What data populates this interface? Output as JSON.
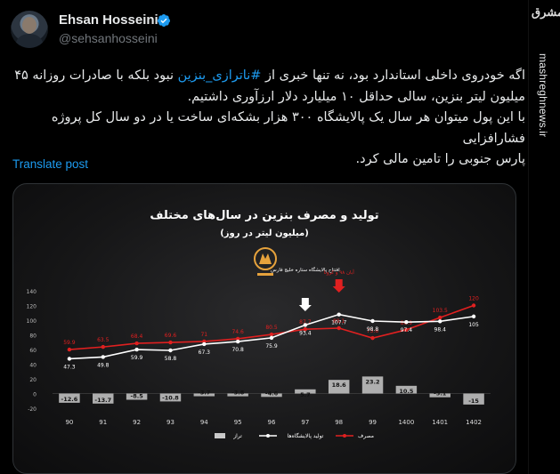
{
  "author": {
    "name": "Ehsan Hosseini",
    "handle": "@sehsanhosseini",
    "verified": true
  },
  "tweet": {
    "line1": "اگه خودروی داخلی استاندارد بود، نه تنها خبری از ",
    "hashtag": "#ناترازی_بنزین",
    "line1_end": " نبود بلکه با صادرات روزانه ۴۵",
    "line2": "میلیون لیتر بنزین، سالی حداقل ۱۰ میلیارد دلار ارزآوری داشتیم.",
    "line3": "با این پول میتوان هر سال یک پالایشگاه ۳۰۰ هزار بشکه‌ای ساخت یا در دو سال کل پروژه فشارافزایی",
    "line4": "پارس جنوبی را تامین مالی کرد."
  },
  "translate_label": "Translate post",
  "side": {
    "logo_text": "مشرق",
    "site": "mashreghnews.ir"
  },
  "colors": {
    "accent": "#1d9bf0",
    "production": "#ffffff",
    "consumption": "#e02020",
    "balance": "#c9c9c9"
  },
  "chart_data": {
    "type": "line",
    "title": "تولید و مصرف بنزین در سال‌های مختلف",
    "subtitle": "(میلیون لیتر در روز)",
    "categories": [
      "90",
      "91",
      "92",
      "93",
      "94",
      "95",
      "96",
      "97",
      "98",
      "99",
      "1400",
      "1401",
      "1402"
    ],
    "ylim": [
      -20,
      140
    ],
    "yticks": [
      -20,
      0,
      20,
      40,
      60,
      80,
      100,
      120,
      140
    ],
    "series": [
      {
        "name": "تولید پالایشگاه‌ها",
        "type": "line",
        "values": [
          47.3,
          49.8,
          59.9,
          58.8,
          67.3,
          70.8,
          75.9,
          93.4,
          107.7,
          98.8,
          97.4,
          98.4,
          105
        ]
      },
      {
        "name": "مصرف",
        "type": "line",
        "values": [
          59.9,
          63.5,
          68.4,
          69.6,
          71,
          74.6,
          80.5,
          87.7,
          89.1,
          75.6,
          86.9,
          103.5,
          120
        ]
      },
      {
        "name": "تراز",
        "type": "bar",
        "values": [
          -12.6,
          -13.7,
          -8.5,
          -10.8,
          -3.7,
          -3.8,
          -4.6,
          5.7,
          18.6,
          23.2,
          10.5,
          -5.1,
          -15
        ]
      }
    ],
    "annotations": [
      {
        "text": "افتتاح پالایشگاه ستاره خلیج فارس",
        "at": "97",
        "color": "#ffffff"
      },
      {
        "text": "آبان ۹۸ و کرونا",
        "at": "98",
        "color": "#e02020"
      }
    ],
    "legend": "bottom"
  }
}
